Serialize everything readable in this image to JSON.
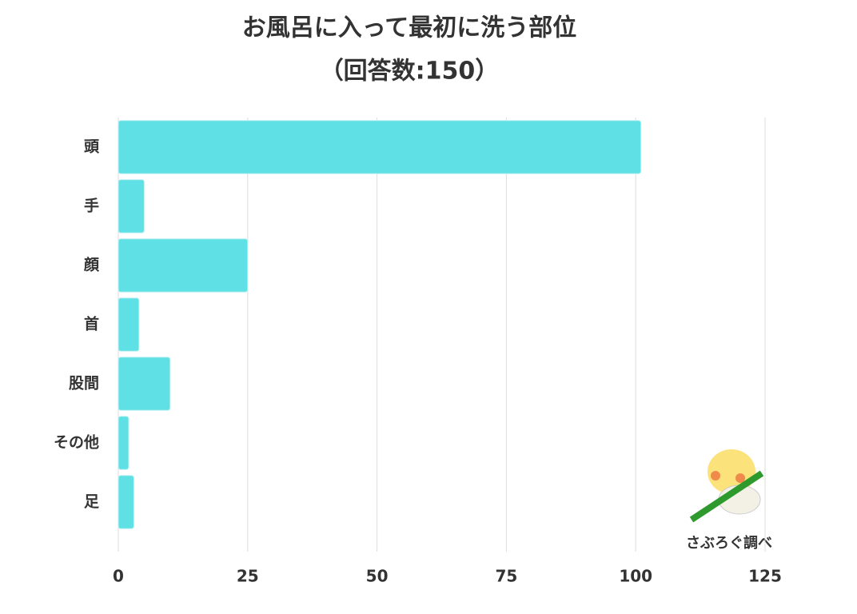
{
  "chart_data": {
    "type": "bar",
    "orientation": "horizontal",
    "title": "お風呂に入って最初に洗う部位",
    "subtitle": "（回答数:150）",
    "annotation": "さぶろぐ調べ",
    "categories": [
      "頭",
      "手",
      "顔",
      "首",
      "股間",
      "その他",
      "足"
    ],
    "values": [
      101,
      5,
      25,
      4,
      10,
      2,
      3
    ],
    "color": "#5ee0e4",
    "xlim": [
      0,
      125
    ],
    "xticks": [
      0,
      25,
      50,
      75,
      100,
      125
    ],
    "grid": true
  }
}
